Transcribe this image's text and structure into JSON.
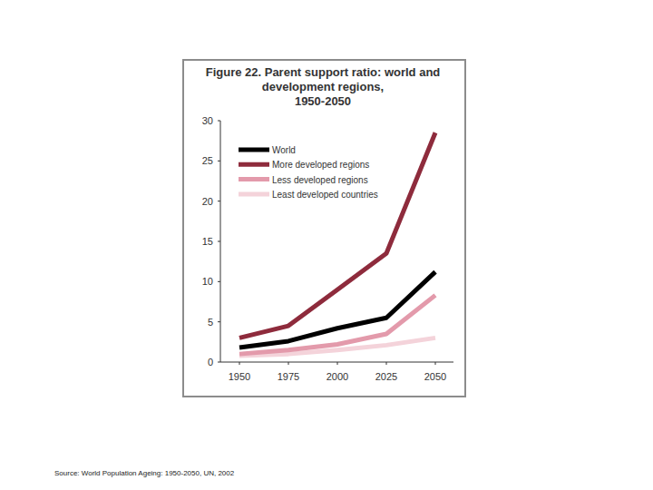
{
  "chart_data": {
    "type": "line",
    "title": [
      "Figure 22. Parent support ratio: world and",
      "development regions,",
      "1950-2050"
    ],
    "source": "Source: World Population Ageing: 1950-2050, UN, 2002",
    "categories": [
      "1950",
      "1975",
      "2000",
      "2025",
      "2050"
    ],
    "series": [
      {
        "name": "World",
        "color": "#000000",
        "values": [
          1.8,
          2.6,
          4.2,
          5.5,
          11.2
        ]
      },
      {
        "name": "More developed regions",
        "color": "#8e2b3c",
        "values": [
          3.0,
          4.5,
          9.0,
          13.5,
          28.5
        ]
      },
      {
        "name": "Less developed regions",
        "color": "#e39aab",
        "values": [
          1.0,
          1.5,
          2.2,
          3.5,
          8.3
        ]
      },
      {
        "name": "Least developed countries",
        "color": "#f4d3da",
        "values": [
          0.8,
          1.0,
          1.5,
          2.1,
          3.0
        ]
      }
    ],
    "ylim": [
      0,
      30
    ],
    "yticks": [
      0,
      5,
      10,
      15,
      20,
      25,
      30
    ],
    "grid": false,
    "legend": "upper left"
  }
}
